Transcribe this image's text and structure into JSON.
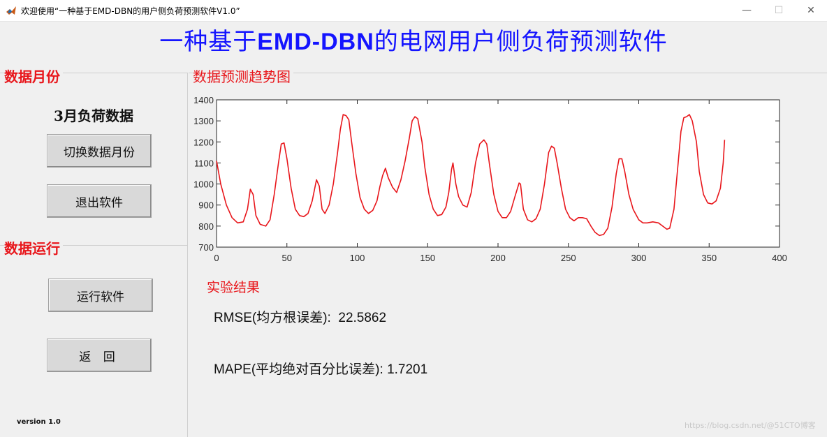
{
  "window": {
    "title": "欢迎使用“一种基于EMD-DBN的用户侧负荷预测软件V1.0”",
    "min_icon": "—",
    "max_icon": "☐",
    "close_icon": "✕"
  },
  "header": {
    "title_pre": "一种基于",
    "title_bold": "EMD-DBN",
    "title_post": "的电网用户侧负荷预测软件"
  },
  "left": {
    "month_section_label": "数据月份",
    "month_text": "3月负荷数据",
    "switch_button": "切换数据月份",
    "exit_button": "退出软件",
    "run_section_label": "数据运行",
    "run_button": "运行软件",
    "back_button": "返 回",
    "version": "version 1.0"
  },
  "right": {
    "trend_section_label": "数据预测趋势图",
    "results_title": "实验结果",
    "rmse_label": "RMSE(均方根误差):",
    "rmse_value": "22.5862",
    "mape_label": "MAPE(平均绝对百分比误差):",
    "mape_value": "1.7201"
  },
  "watermark": "https://blog.csdn.net/@51CTO博客",
  "colors": {
    "title_blue": "#1414ff",
    "label_red": "#e8161b",
    "line_red": "#e8161b"
  },
  "chart_data": {
    "type": "line",
    "xlim": [
      0,
      400
    ],
    "ylim": [
      700,
      1400
    ],
    "x_ticks": [
      0,
      50,
      100,
      150,
      200,
      250,
      300,
      350,
      400
    ],
    "y_ticks": [
      700,
      800,
      900,
      1000,
      1100,
      1200,
      1300,
      1400
    ],
    "grid": false,
    "series": [
      {
        "points": [
          [
            0,
            1110
          ],
          [
            3,
            1000
          ],
          [
            7,
            900
          ],
          [
            11,
            840
          ],
          [
            15,
            815
          ],
          [
            19,
            820
          ],
          [
            22,
            880
          ],
          [
            24,
            975
          ],
          [
            26,
            950
          ],
          [
            28,
            850
          ],
          [
            31,
            808
          ],
          [
            35,
            800
          ],
          [
            38,
            830
          ],
          [
            41,
            950
          ],
          [
            44,
            1100
          ],
          [
            46,
            1190
          ],
          [
            48,
            1195
          ],
          [
            50,
            1120
          ],
          [
            53,
            980
          ],
          [
            56,
            880
          ],
          [
            59,
            850
          ],
          [
            62,
            845
          ],
          [
            65,
            860
          ],
          [
            68,
            920
          ],
          [
            71,
            1020
          ],
          [
            73,
            990
          ],
          [
            75,
            880
          ],
          [
            77,
            860
          ],
          [
            80,
            900
          ],
          [
            83,
            1000
          ],
          [
            86,
            1150
          ],
          [
            88,
            1260
          ],
          [
            90,
            1330
          ],
          [
            92,
            1325
          ],
          [
            94,
            1305
          ],
          [
            96,
            1200
          ],
          [
            99,
            1050
          ],
          [
            102,
            935
          ],
          [
            105,
            880
          ],
          [
            108,
            860
          ],
          [
            111,
            875
          ],
          [
            114,
            920
          ],
          [
            116,
            985
          ],
          [
            118,
            1040
          ],
          [
            120,
            1075
          ],
          [
            122,
            1030
          ],
          [
            125,
            985
          ],
          [
            128,
            960
          ],
          [
            131,
            1020
          ],
          [
            134,
            1110
          ],
          [
            137,
            1220
          ],
          [
            139,
            1300
          ],
          [
            141,
            1320
          ],
          [
            143,
            1310
          ],
          [
            146,
            1200
          ],
          [
            148,
            1080
          ],
          [
            151,
            950
          ],
          [
            154,
            880
          ],
          [
            157,
            850
          ],
          [
            160,
            855
          ],
          [
            163,
            890
          ],
          [
            165,
            960
          ],
          [
            167,
            1070
          ],
          [
            168,
            1100
          ],
          [
            170,
            1000
          ],
          [
            172,
            940
          ],
          [
            175,
            900
          ],
          [
            178,
            890
          ],
          [
            181,
            960
          ],
          [
            184,
            1100
          ],
          [
            187,
            1190
          ],
          [
            190,
            1210
          ],
          [
            192,
            1190
          ],
          [
            194,
            1090
          ],
          [
            197,
            950
          ],
          [
            200,
            870
          ],
          [
            203,
            840
          ],
          [
            206,
            840
          ],
          [
            209,
            870
          ],
          [
            212,
            940
          ],
          [
            215,
            1005
          ],
          [
            216,
            1000
          ],
          [
            218,
            880
          ],
          [
            221,
            830
          ],
          [
            224,
            820
          ],
          [
            227,
            835
          ],
          [
            230,
            880
          ],
          [
            233,
            1000
          ],
          [
            236,
            1150
          ],
          [
            238,
            1180
          ],
          [
            240,
            1170
          ],
          [
            242,
            1100
          ],
          [
            245,
            980
          ],
          [
            248,
            880
          ],
          [
            251,
            840
          ],
          [
            254,
            825
          ],
          [
            257,
            840
          ],
          [
            260,
            840
          ],
          [
            263,
            835
          ],
          [
            266,
            800
          ],
          [
            269,
            770
          ],
          [
            272,
            755
          ],
          [
            275,
            760
          ],
          [
            278,
            790
          ],
          [
            281,
            890
          ],
          [
            284,
            1050
          ],
          [
            286,
            1120
          ],
          [
            288,
            1120
          ],
          [
            290,
            1060
          ],
          [
            293,
            950
          ],
          [
            296,
            880
          ],
          [
            300,
            830
          ],
          [
            303,
            815
          ],
          [
            306,
            815
          ],
          [
            310,
            820
          ],
          [
            314,
            815
          ],
          [
            317,
            800
          ],
          [
            320,
            785
          ],
          [
            322,
            790
          ],
          [
            325,
            880
          ],
          [
            328,
            1100
          ],
          [
            330,
            1250
          ],
          [
            332,
            1315
          ],
          [
            334,
            1320
          ],
          [
            336,
            1330
          ],
          [
            338,
            1300
          ],
          [
            341,
            1200
          ],
          [
            343,
            1060
          ],
          [
            346,
            950
          ],
          [
            349,
            910
          ],
          [
            352,
            905
          ],
          [
            355,
            920
          ],
          [
            358,
            980
          ],
          [
            360,
            1100
          ],
          [
            361,
            1210
          ]
        ]
      }
    ]
  }
}
